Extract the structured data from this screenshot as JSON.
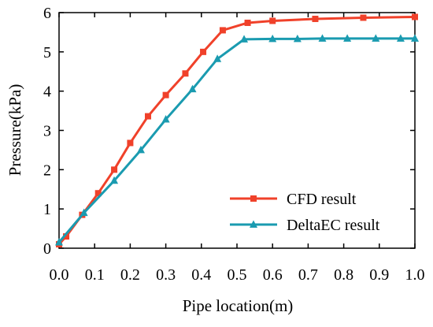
{
  "chart_data": {
    "type": "line",
    "xlabel": "Pipe location(m)",
    "ylabel": "Pressure(kPa)",
    "xlim": [
      0,
      1.0
    ],
    "ylim": [
      0,
      6
    ],
    "x_ticks": [
      "0.0",
      "0.1",
      "0.2",
      "0.3",
      "0.4",
      "0.5",
      "0.6",
      "0.7",
      "0.8",
      "0.9",
      "1.0"
    ],
    "y_ticks": [
      "0",
      "1",
      "2",
      "3",
      "4",
      "5",
      "6"
    ],
    "grid": false,
    "legend_position": "bottom-right",
    "series": [
      {
        "name": "CFD result",
        "color": "#f0412a",
        "marker": "square",
        "x": [
          0.0,
          0.02,
          0.065,
          0.11,
          0.155,
          0.2,
          0.25,
          0.3,
          0.355,
          0.405,
          0.46,
          0.53,
          0.6,
          0.72,
          0.855,
          1.0
        ],
        "y": [
          0.1,
          0.3,
          0.85,
          1.4,
          2.0,
          2.68,
          3.36,
          3.9,
          4.45,
          5.0,
          5.55,
          5.74,
          5.79,
          5.84,
          5.87,
          5.89
        ]
      },
      {
        "name": "DeltaEC result",
        "color": "#1a9bb0",
        "marker": "triangle",
        "x": [
          0.0,
          0.07,
          0.155,
          0.23,
          0.3,
          0.375,
          0.445,
          0.52,
          0.6,
          0.67,
          0.74,
          0.81,
          0.89,
          0.96,
          1.0
        ],
        "y": [
          0.15,
          0.9,
          1.72,
          2.5,
          3.28,
          4.05,
          4.82,
          5.32,
          5.33,
          5.33,
          5.34,
          5.34,
          5.34,
          5.34,
          5.34
        ]
      }
    ]
  }
}
